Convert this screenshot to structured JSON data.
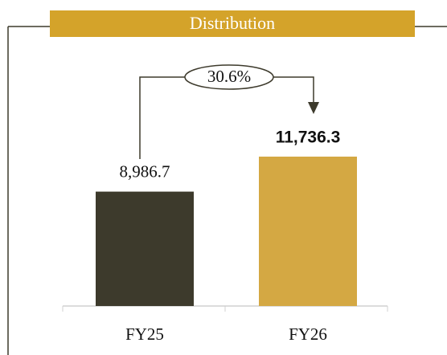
{
  "chart_data": {
    "type": "bar",
    "title": "Distribution",
    "categories": [
      "FY25",
      "FY26"
    ],
    "values": [
      8986.7,
      11736.3
    ],
    "value_labels": [
      "8,986.7",
      "11,736.3"
    ],
    "colors": [
      "#3d3a2c",
      "#d4a843"
    ],
    "annotation": "30.6%"
  }
}
